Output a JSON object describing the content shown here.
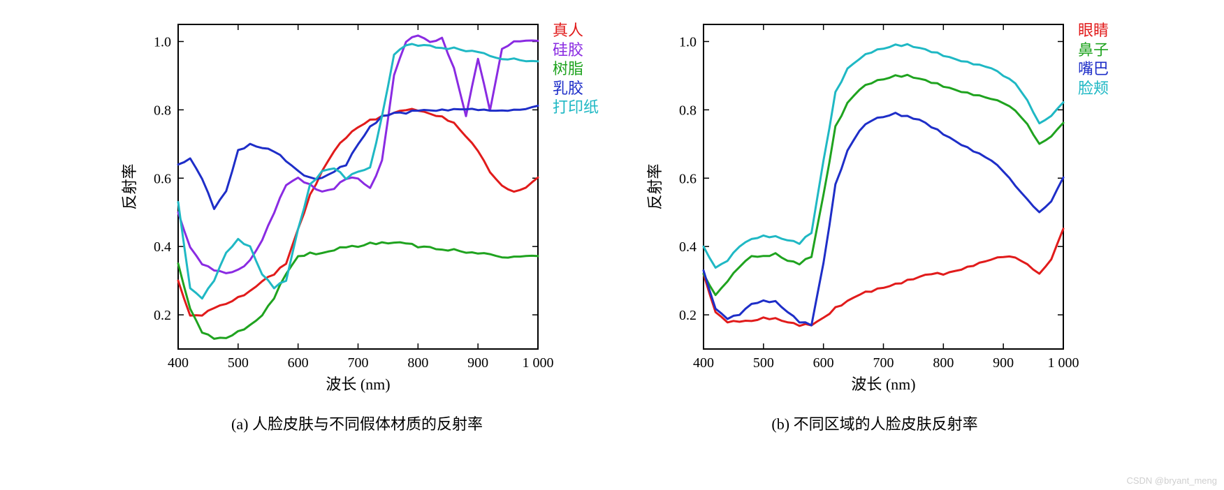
{
  "watermark": "CSDN @bryant_meng",
  "chart_a": {
    "type": "line",
    "xlabel": "波长 (nm)",
    "ylabel": "反射率",
    "caption": "(a) 人脸皮肤与不同假体材质的反射率",
    "xlim": [
      400,
      1000
    ],
    "ylim": [
      0.1,
      1.05
    ],
    "xticks": [
      400,
      500,
      600,
      700,
      800,
      900,
      1000
    ],
    "xtick_labels": [
      "400",
      "500",
      "600",
      "700",
      "800",
      "900",
      "1 000"
    ],
    "yticks": [
      0.2,
      0.4,
      0.6,
      0.8,
      1.0
    ],
    "label_fontsize": 22,
    "tick_fontsize": 20,
    "line_width": 3,
    "background_color": "#ffffff",
    "axis_color": "#000000",
    "series": [
      {
        "name": "真人",
        "color": "#e11b1b",
        "x": [
          400,
          420,
          440,
          460,
          480,
          500,
          520,
          540,
          560,
          580,
          600,
          620,
          640,
          660,
          680,
          700,
          720,
          740,
          760,
          780,
          800,
          820,
          840,
          860,
          880,
          900,
          920,
          940,
          960,
          980,
          1000
        ],
        "y": [
          0.3,
          0.2,
          0.2,
          0.22,
          0.23,
          0.25,
          0.27,
          0.3,
          0.32,
          0.35,
          0.45,
          0.55,
          0.62,
          0.68,
          0.72,
          0.75,
          0.77,
          0.78,
          0.79,
          0.8,
          0.8,
          0.79,
          0.78,
          0.76,
          0.72,
          0.68,
          0.62,
          0.58,
          0.56,
          0.57,
          0.6
        ]
      },
      {
        "name": "硅胶",
        "color": "#8a2be2",
        "x": [
          400,
          420,
          440,
          460,
          480,
          500,
          520,
          540,
          560,
          580,
          600,
          620,
          640,
          660,
          680,
          700,
          720,
          740,
          760,
          780,
          800,
          820,
          840,
          860,
          880,
          900,
          920,
          940,
          960,
          980,
          1000
        ],
        "y": [
          0.5,
          0.4,
          0.35,
          0.33,
          0.32,
          0.33,
          0.36,
          0.42,
          0.5,
          0.58,
          0.6,
          0.58,
          0.56,
          0.57,
          0.6,
          0.6,
          0.57,
          0.65,
          0.9,
          1.0,
          1.02,
          1.0,
          1.01,
          0.92,
          0.78,
          0.95,
          0.8,
          0.98,
          1.0,
          1.0,
          1.0
        ]
      },
      {
        "name": "树脂",
        "color": "#1fa31f",
        "x": [
          400,
          420,
          440,
          460,
          480,
          500,
          520,
          540,
          560,
          580,
          600,
          620,
          640,
          660,
          680,
          700,
          720,
          740,
          760,
          780,
          800,
          820,
          840,
          860,
          880,
          900,
          920,
          940,
          960,
          980,
          1000
        ],
        "y": [
          0.35,
          0.22,
          0.15,
          0.13,
          0.13,
          0.15,
          0.17,
          0.2,
          0.25,
          0.32,
          0.37,
          0.38,
          0.38,
          0.39,
          0.4,
          0.4,
          0.41,
          0.41,
          0.41,
          0.41,
          0.4,
          0.4,
          0.39,
          0.39,
          0.38,
          0.38,
          0.38,
          0.37,
          0.37,
          0.37,
          0.37
        ]
      },
      {
        "name": "乳胶",
        "color": "#1e2ec8",
        "x": [
          400,
          420,
          440,
          460,
          480,
          500,
          520,
          540,
          560,
          580,
          600,
          620,
          640,
          660,
          680,
          700,
          720,
          740,
          760,
          780,
          800,
          820,
          840,
          860,
          880,
          900,
          920,
          940,
          960,
          980,
          1000
        ],
        "y": [
          0.64,
          0.66,
          0.6,
          0.51,
          0.56,
          0.68,
          0.7,
          0.69,
          0.68,
          0.65,
          0.62,
          0.6,
          0.6,
          0.62,
          0.64,
          0.7,
          0.75,
          0.78,
          0.79,
          0.79,
          0.8,
          0.8,
          0.8,
          0.8,
          0.8,
          0.8,
          0.8,
          0.8,
          0.8,
          0.8,
          0.81
        ]
      },
      {
        "name": "打印纸",
        "color": "#1fb8c4",
        "x": [
          400,
          420,
          440,
          460,
          480,
          500,
          520,
          540,
          560,
          580,
          600,
          620,
          640,
          660,
          680,
          700,
          720,
          740,
          760,
          780,
          800,
          820,
          840,
          860,
          880,
          900,
          920,
          940,
          960,
          980,
          1000
        ],
        "y": [
          0.53,
          0.28,
          0.25,
          0.3,
          0.38,
          0.42,
          0.4,
          0.32,
          0.28,
          0.3,
          0.45,
          0.58,
          0.62,
          0.63,
          0.6,
          0.62,
          0.63,
          0.78,
          0.96,
          0.99,
          0.99,
          0.99,
          0.98,
          0.98,
          0.97,
          0.97,
          0.96,
          0.95,
          0.95,
          0.94,
          0.94
        ]
      }
    ]
  },
  "chart_b": {
    "type": "line",
    "xlabel": "波长 (nm)",
    "ylabel": "反射率",
    "caption": "(b) 不同区域的人脸皮肤反射率",
    "xlim": [
      400,
      1000
    ],
    "ylim": [
      0.1,
      1.05
    ],
    "xticks": [
      400,
      500,
      600,
      700,
      800,
      900,
      1000
    ],
    "xtick_labels": [
      "400",
      "500",
      "600",
      "700",
      "800",
      "900",
      "1 000"
    ],
    "yticks": [
      0.2,
      0.4,
      0.6,
      0.8,
      1.0
    ],
    "label_fontsize": 22,
    "tick_fontsize": 20,
    "line_width": 3,
    "background_color": "#ffffff",
    "axis_color": "#000000",
    "series": [
      {
        "name": "眼睛",
        "color": "#e11b1b",
        "x": [
          400,
          420,
          440,
          460,
          480,
          500,
          520,
          540,
          560,
          580,
          600,
          620,
          640,
          660,
          680,
          700,
          720,
          740,
          760,
          780,
          800,
          820,
          840,
          860,
          880,
          900,
          920,
          940,
          960,
          980,
          1000
        ],
        "y": [
          0.32,
          0.21,
          0.18,
          0.18,
          0.18,
          0.19,
          0.19,
          0.18,
          0.17,
          0.17,
          0.19,
          0.22,
          0.24,
          0.26,
          0.27,
          0.28,
          0.29,
          0.3,
          0.31,
          0.32,
          0.32,
          0.33,
          0.34,
          0.35,
          0.36,
          0.37,
          0.37,
          0.35,
          0.32,
          0.36,
          0.45
        ]
      },
      {
        "name": "鼻子",
        "color": "#1fa31f",
        "x": [
          400,
          420,
          440,
          460,
          480,
          500,
          520,
          540,
          560,
          580,
          600,
          620,
          640,
          660,
          680,
          700,
          720,
          740,
          760,
          780,
          800,
          820,
          840,
          860,
          880,
          900,
          920,
          940,
          960,
          980,
          1000
        ],
        "y": [
          0.32,
          0.26,
          0.3,
          0.34,
          0.37,
          0.37,
          0.38,
          0.36,
          0.35,
          0.37,
          0.55,
          0.75,
          0.82,
          0.86,
          0.88,
          0.89,
          0.9,
          0.9,
          0.89,
          0.88,
          0.87,
          0.86,
          0.85,
          0.84,
          0.83,
          0.82,
          0.8,
          0.76,
          0.7,
          0.72,
          0.76
        ]
      },
      {
        "name": "嘴巴",
        "color": "#1e2ec8",
        "x": [
          400,
          420,
          440,
          460,
          480,
          500,
          520,
          540,
          560,
          580,
          600,
          620,
          640,
          660,
          680,
          700,
          720,
          740,
          760,
          780,
          800,
          820,
          840,
          860,
          880,
          900,
          920,
          940,
          960,
          980,
          1000
        ],
        "y": [
          0.33,
          0.22,
          0.19,
          0.2,
          0.23,
          0.24,
          0.24,
          0.21,
          0.18,
          0.17,
          0.35,
          0.58,
          0.68,
          0.74,
          0.77,
          0.78,
          0.79,
          0.78,
          0.77,
          0.75,
          0.73,
          0.71,
          0.69,
          0.67,
          0.65,
          0.62,
          0.58,
          0.54,
          0.5,
          0.53,
          0.6
        ]
      },
      {
        "name": "脸颊",
        "color": "#1fb8c4",
        "x": [
          400,
          420,
          440,
          460,
          480,
          500,
          520,
          540,
          560,
          580,
          600,
          620,
          640,
          660,
          680,
          700,
          720,
          740,
          760,
          780,
          800,
          820,
          840,
          860,
          880,
          900,
          920,
          940,
          960,
          980,
          1000
        ],
        "y": [
          0.4,
          0.34,
          0.36,
          0.4,
          0.42,
          0.43,
          0.43,
          0.42,
          0.41,
          0.44,
          0.65,
          0.85,
          0.92,
          0.95,
          0.97,
          0.98,
          0.99,
          0.99,
          0.98,
          0.97,
          0.96,
          0.95,
          0.94,
          0.93,
          0.92,
          0.9,
          0.88,
          0.83,
          0.76,
          0.78,
          0.82
        ]
      }
    ]
  }
}
